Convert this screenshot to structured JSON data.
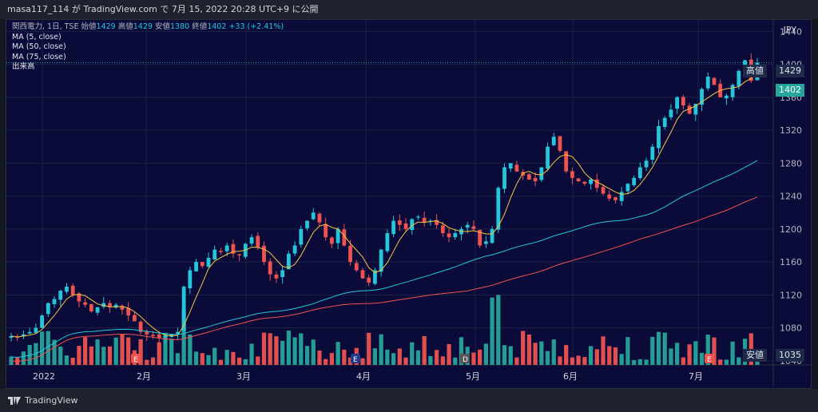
{
  "header": {
    "caption": "masa117_114 が TradingView.com で 7月 15, 2022 20:28 UTC+9 に公開"
  },
  "legend": {
    "symbol": "関西電力, 1日, TSE",
    "ohlc": {
      "open_label": "始値",
      "open": "1429",
      "high_label": "高値",
      "high": "1429",
      "low_label": "安値",
      "low": "1380",
      "close_label": "終値",
      "close": "1402",
      "change": "+33 (+2.41%)"
    },
    "ma5": "MA (5, close)",
    "ma50": "MA (50, close)",
    "ma75": "MA (75, close)",
    "volume": "出来高"
  },
  "axis": {
    "currency": "JPY",
    "y_ticks": [
      "1440",
      "1400",
      "1360",
      "1320",
      "1280",
      "1240",
      "1200",
      "1160",
      "1120",
      "1080",
      "1040"
    ],
    "x_ticks": [
      "2022",
      "2月",
      "3月",
      "4月",
      "5月",
      "6月",
      "7月"
    ]
  },
  "labels": {
    "high_tag": "高値",
    "high_value": "1429",
    "price_value": "1402",
    "low_tag": "安値",
    "low_value": "1035"
  },
  "events": [
    "E",
    "E",
    "D",
    "E"
  ],
  "brand": "TradingView",
  "colors": {
    "up": "#26a69a",
    "down": "#ef5350",
    "ma5": "#f5c542",
    "ma50": "#26c6da",
    "ma75": "#ef5350",
    "bg": "#0b0b3a"
  },
  "chart_data": {
    "type": "candlestick",
    "ylim": [
      1035,
      1450
    ],
    "closes": [
      1070,
      1068,
      1072,
      1075,
      1080,
      1095,
      1110,
      1115,
      1125,
      1130,
      1120,
      1112,
      1108,
      1100,
      1105,
      1110,
      1105,
      1108,
      1102,
      1095,
      1088,
      1075,
      1072,
      1070,
      1068,
      1070,
      1072,
      1075,
      1130,
      1150,
      1160,
      1155,
      1165,
      1175,
      1172,
      1180,
      1170,
      1168,
      1182,
      1190,
      1178,
      1160,
      1145,
      1140,
      1150,
      1170,
      1180,
      1200,
      1210,
      1220,
      1208,
      1190,
      1182,
      1200,
      1180,
      1160,
      1150,
      1140,
      1135,
      1150,
      1175,
      1195,
      1210,
      1205,
      1200,
      1212,
      1215,
      1208,
      1210,
      1205,
      1195,
      1190,
      1195,
      1200,
      1205,
      1200,
      1180,
      1185,
      1200,
      1250,
      1275,
      1280,
      1270,
      1265,
      1260,
      1258,
      1275,
      1300,
      1312,
      1295,
      1270,
      1262,
      1258,
      1255,
      1260,
      1250,
      1243,
      1237,
      1235,
      1245,
      1255,
      1262,
      1275,
      1283,
      1300,
      1325,
      1335,
      1345,
      1360,
      1350,
      1340,
      1352,
      1370,
      1385,
      1375,
      1360,
      1362,
      1375,
      1392,
      1405,
      1380,
      1402
    ]
  }
}
